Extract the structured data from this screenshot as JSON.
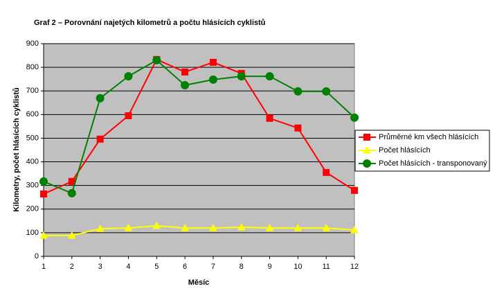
{
  "chart_data": {
    "type": "line",
    "title": "Graf 2 – Porovnání najetých kilometrů a počtu hlásících cyklistů",
    "x_label": "Měsíc",
    "y_label": "Kilometry, počet hlásících cyklistů",
    "x": [
      1,
      2,
      3,
      4,
      5,
      6,
      7,
      8,
      9,
      10,
      11,
      12
    ],
    "series": [
      {
        "name": "Průměrné km všech hlásících",
        "color": "#ff0000",
        "marker": "square",
        "values": [
          264,
          317,
          496,
          595,
          833,
          780,
          821,
          774,
          584,
          543,
          355,
          279
        ]
      },
      {
        "name": "Počet hlásících",
        "color": "#ffff00",
        "marker": "triangle",
        "values": [
          88,
          88,
          117,
          120,
          129,
          120,
          120,
          123,
          120,
          120,
          120,
          111
        ]
      },
      {
        "name": "Počet hlásících - transponovaný",
        "color": "#008000",
        "marker": "circle",
        "values": [
          317,
          267,
          669,
          762,
          830,
          724,
          748,
          762,
          762,
          698,
          698,
          587
        ]
      }
    ],
    "xlim": [
      1,
      12
    ],
    "xticks": [
      1,
      2,
      3,
      4,
      5,
      6,
      7,
      8,
      9,
      10,
      11,
      12
    ],
    "ylim": [
      0,
      900
    ],
    "yticks": [
      0,
      100,
      200,
      300,
      400,
      500,
      600,
      700,
      800,
      900
    ],
    "grid": true,
    "plot_background": "#c0c0c0",
    "legend": "right"
  }
}
